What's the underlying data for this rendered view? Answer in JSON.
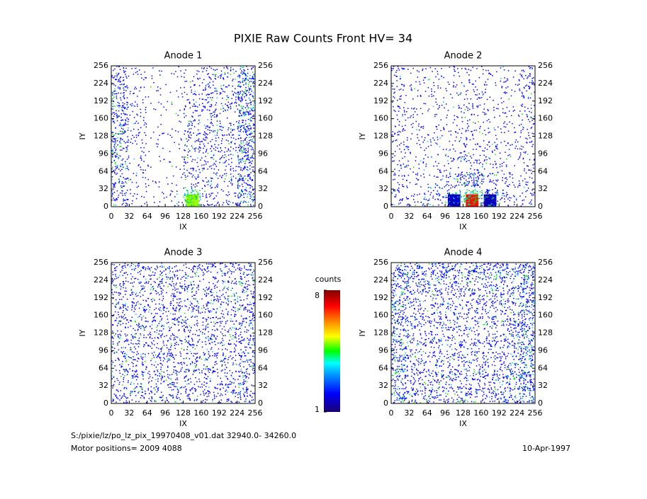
{
  "title": "PIXIE Raw Counts Front HV= 34",
  "footer": {
    "file": "S:/pixie/lz/po_lz_pix_19970408_v01.dat   32940.0- 34260.0",
    "motor": "Motor positions= 2009 4088",
    "date": "10-Apr-1997"
  },
  "colorbar": {
    "label": "counts",
    "clim": [
      1,
      8
    ],
    "ticks": [
      1,
      8
    ]
  },
  "chart_data": [
    {
      "type": "heatmap",
      "title": "Anode 1",
      "xlabel": "IX",
      "ylabel": "IY",
      "xlim": [
        0,
        256
      ],
      "ylim": [
        0,
        256
      ],
      "xticks": [
        0,
        32,
        64,
        96,
        128,
        160,
        192,
        224,
        256
      ],
      "yticks": [
        0,
        32,
        64,
        96,
        128,
        160,
        192,
        224,
        256
      ],
      "values": [
        [
          0.6,
          0.2,
          0.1,
          0.1,
          0.2,
          0.4,
          0.4,
          1.0
        ],
        [
          0.7,
          0.2,
          0.1,
          0.1,
          0.3,
          0.5,
          0.4,
          1.0
        ],
        [
          0.8,
          0.3,
          0.1,
          0.1,
          0.4,
          0.5,
          0.4,
          1.0
        ],
        [
          0.8,
          0.3,
          0.1,
          0.1,
          0.5,
          0.5,
          0.4,
          1.0
        ],
        [
          0.8,
          0.2,
          0.1,
          0.1,
          0.5,
          0.5,
          0.4,
          1.0
        ],
        [
          0.7,
          0.2,
          0.1,
          0.1,
          0.4,
          0.4,
          0.4,
          0.9
        ],
        [
          0.6,
          0.2,
          0.1,
          0.1,
          0.4,
          0.4,
          0.3,
          0.9
        ],
        [
          0.6,
          0.2,
          0.1,
          0.2,
          5,
          0.4,
          0.3,
          0.9
        ]
      ]
    },
    {
      "type": "heatmap",
      "title": "Anode 2",
      "xlabel": "IX",
      "ylabel": "IY",
      "xlim": [
        0,
        256
      ],
      "ylim": [
        0,
        256
      ],
      "xticks": [
        0,
        32,
        64,
        96,
        128,
        160,
        192,
        224,
        256
      ],
      "yticks": [
        0,
        32,
        64,
        96,
        128,
        160,
        192,
        224,
        256
      ],
      "values": [
        [
          0.3,
          0.2,
          0.2,
          0.2,
          0.2,
          0.2,
          0.2,
          0.4
        ],
        [
          0.3,
          0.2,
          0.2,
          0.2,
          0.3,
          0.2,
          0.2,
          0.4
        ],
        [
          0.3,
          0.2,
          0.2,
          0.2,
          0.3,
          0.2,
          0.2,
          0.3
        ],
        [
          0.3,
          0.2,
          0.2,
          0.2,
          0.3,
          0.2,
          0.2,
          0.3
        ],
        [
          0.3,
          0.2,
          0.2,
          0.2,
          0.3,
          0.3,
          0.2,
          0.3
        ],
        [
          0.3,
          0.2,
          0.2,
          0.3,
          0.4,
          0.3,
          0.2,
          0.3
        ],
        [
          0.3,
          0.2,
          0.3,
          0.6,
          1.0,
          0.5,
          0.3,
          0.3
        ],
        [
          0.4,
          0.3,
          0.4,
          1.5,
          7,
          1.5,
          0.4,
          0.3
        ]
      ]
    },
    {
      "type": "heatmap",
      "title": "Anode 3",
      "xlabel": "IX",
      "ylabel": "IY",
      "xlim": [
        0,
        256
      ],
      "ylim": [
        0,
        256
      ],
      "xticks": [
        0,
        32,
        64,
        96,
        128,
        160,
        192,
        224,
        256
      ],
      "yticks": [
        0,
        32,
        64,
        96,
        128,
        160,
        192,
        224,
        256
      ],
      "values": [
        [
          0.5,
          0.5,
          0.5,
          0.5,
          0.5,
          0.5,
          0.5,
          0.6
        ],
        [
          0.5,
          0.5,
          0.5,
          0.5,
          0.5,
          0.5,
          0.5,
          0.6
        ],
        [
          0.5,
          0.5,
          0.5,
          0.5,
          0.5,
          0.5,
          0.5,
          0.6
        ],
        [
          0.5,
          0.5,
          0.5,
          0.5,
          0.5,
          0.5,
          0.5,
          0.6
        ],
        [
          0.5,
          0.5,
          0.5,
          0.5,
          0.5,
          0.5,
          0.5,
          0.6
        ],
        [
          0.5,
          0.5,
          0.5,
          0.5,
          0.5,
          0.5,
          0.5,
          0.6
        ],
        [
          0.5,
          0.5,
          0.5,
          0.5,
          0.5,
          0.5,
          0.5,
          0.6
        ],
        [
          0.5,
          0.5,
          0.5,
          0.5,
          0.5,
          0.5,
          0.5,
          0.6
        ]
      ]
    },
    {
      "type": "heatmap",
      "title": "Anode 4",
      "xlabel": "IX",
      "ylabel": "IY",
      "xlim": [
        0,
        256
      ],
      "ylim": [
        0,
        256
      ],
      "xticks": [
        0,
        32,
        64,
        96,
        128,
        160,
        192,
        224,
        256
      ],
      "yticks": [
        0,
        32,
        64,
        96,
        128,
        160,
        192,
        224,
        256
      ],
      "values": [
        [
          0.9,
          0.8,
          0.8,
          0.8,
          0.8,
          0.8,
          0.8,
          1.0
        ],
        [
          0.8,
          0.6,
          0.6,
          0.6,
          0.6,
          0.6,
          0.6,
          0.9
        ],
        [
          0.8,
          0.5,
          0.5,
          0.5,
          0.5,
          0.5,
          0.6,
          0.9
        ],
        [
          0.8,
          0.5,
          0.5,
          0.5,
          0.5,
          0.5,
          0.6,
          0.9
        ],
        [
          0.8,
          0.5,
          0.5,
          0.5,
          0.5,
          0.5,
          0.6,
          0.9
        ],
        [
          0.8,
          0.5,
          0.5,
          0.5,
          0.5,
          0.5,
          0.6,
          0.9
        ],
        [
          0.8,
          0.6,
          0.6,
          0.6,
          0.6,
          0.6,
          0.7,
          1.0
        ],
        [
          0.8,
          0.6,
          0.6,
          0.6,
          0.6,
          0.6,
          0.7,
          1.0
        ]
      ]
    }
  ]
}
